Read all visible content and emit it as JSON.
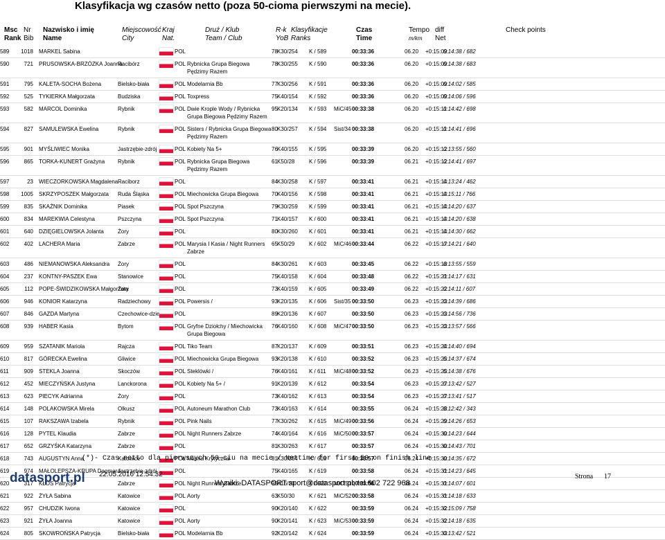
{
  "header": {
    "title": "Klasyfikacja wg czasów netto (poza 50-cioma pierwszymi na mecie).",
    "columns": {
      "msc": [
        "Msc",
        "Rank"
      ],
      "nr": [
        "Nr",
        "Bib"
      ],
      "name": [
        "Nazwisko i imię",
        "Name"
      ],
      "city": [
        "Miejscowość",
        "City"
      ],
      "nat": [
        "Kraj",
        "Nat."
      ],
      "team": [
        "Druż / Klub",
        "Team / Club"
      ],
      "yob": [
        "R-k",
        "YoB"
      ],
      "ranks": [
        "Klasyfikacje",
        "Ranks"
      ],
      "time": [
        "Czas",
        "Time"
      ],
      "tempo": [
        "Tempo",
        "m/km"
      ],
      "diff": "diff",
      "net": "Net",
      "check": "Check points"
    }
  },
  "table": {
    "rows": [
      [
        "589",
        "1018",
        "MARKEL Sabina",
        "",
        "POL",
        "",
        "78",
        "K30/254",
        "K / 589",
        "",
        "00:33:36",
        "06.20",
        "+0:15:09",
        "0:14:38 / 682"
      ],
      [
        "590",
        "721",
        "PRUSOWSKA-BRZÓZKA Joanna",
        "Racibórz",
        "POL",
        "Rybnicka Grupa Biegowa Pędzimy Razem",
        "78",
        "K30/255",
        "K / 590",
        "",
        "00:33:36",
        "06.20",
        "+0:15:09",
        "0:14:38 / 683"
      ],
      [
        "591",
        "795",
        "KALETA-SOCHA Bożena",
        "Bielsko-biała",
        "POL",
        "Modelarnia Bb",
        "77",
        "K30/256",
        "K / 591",
        "",
        "00:33:36",
        "06.20",
        "+0:15:09",
        "0:14:02 / 585"
      ],
      [
        "592",
        "525",
        "TYKIERKA Małgorzata",
        "Budziska",
        "POL",
        "Toxpress",
        "75",
        "K40/154",
        "K / 592",
        "",
        "00:33:36",
        "06.20",
        "+0:15:09",
        "0:14:06 / 596"
      ],
      [
        "593",
        "582",
        "MARCOL Dominika",
        "Rybnik",
        "POL",
        "Dwie Krople Wody / Rybnicka Grupa Biegowa Pędzimy Razem",
        "95",
        "K20/134",
        "K / 593",
        "MiC/45",
        "00:33:38",
        "06.20",
        "+0:15:11",
        "0:14:42 / 698"
      ],
      [
        "594",
        "827",
        "SAMULEWSKA Ewelina",
        "Rybnik",
        "POL",
        "Sisters / Rybnicka Grupa Biegowa Pędzimy Razem",
        "80",
        "K30/257",
        "K / 594",
        "Sist/34",
        "00:33:38",
        "06.20",
        "+0:15:11",
        "0:14:41 / 696"
      ],
      [
        "595",
        "901",
        "MYŚLIWIEC Monika",
        "Jastrzębie-zdrój",
        "POL",
        "Kobiety Na 5+",
        "76",
        "K40/155",
        "K / 595",
        "",
        "00:33:39",
        "06.20",
        "+0:15:12",
        "0:13:55 / 560"
      ],
      [
        "596",
        "865",
        "TORKA-KUNERT Grażyna",
        "Rybnik",
        "POL",
        "Rybnicka Grupa Biegowa Pędzimy Razem",
        "61",
        "K50/28",
        "K / 596",
        "",
        "00:33:39",
        "06.21",
        "+0:15:12",
        "0:14:41 / 697"
      ],
      [
        "597",
        "23",
        "WIECZORKOWSKA Magdalena",
        "Raciborz",
        "POL",
        "",
        "84",
        "K30/258",
        "K / 597",
        "",
        "00:33:41",
        "06.21",
        "+0:15:14",
        "0:13:24 / 462"
      ],
      [
        "598",
        "1005",
        "SKRZYPOSZEK Małgorzata",
        "Ruda Śląska",
        "POL",
        "Miechowicka Grupa Biegowa",
        "70",
        "K40/156",
        "K / 598",
        "",
        "00:33:41",
        "06.21",
        "+0:15:14",
        "0:15:11 / 766"
      ],
      [
        "599",
        "835",
        "SKAŹNIK Dominika",
        "Piasek",
        "POL",
        "Spot Pszczyna",
        "79",
        "K30/259",
        "K / 599",
        "",
        "00:33:41",
        "06.21",
        "+0:15:14",
        "0:14:20 / 637"
      ],
      [
        "600",
        "834",
        "MAREKWIA Celestyna",
        "Pszczyna",
        "POL",
        "Spot Pszczyna",
        "71",
        "K40/157",
        "K / 600",
        "",
        "00:33:41",
        "06.21",
        "+0:15:14",
        "0:14:20 / 638"
      ],
      [
        "601",
        "640",
        "DZIĘGIELOWSKA Jolanta",
        "Żory",
        "POL",
        "",
        "80",
        "K30/260",
        "K / 601",
        "",
        "00:33:41",
        "06.21",
        "+0:15:14",
        "0:14:30 / 662"
      ],
      [
        "602",
        "402",
        "LACHERA Maria",
        "Zabrze",
        "POL",
        "Marysia I Kasia / Night Runners Zabrze",
        "65",
        "K50/29",
        "K / 602",
        "MiC/46",
        "00:33:44",
        "06.22",
        "+0:15:17",
        "0:14:21 / 640"
      ],
      [
        "603",
        "486",
        "NIEMANOWSKA Aleksandra",
        "Żory",
        "POL",
        "",
        "84",
        "K30/261",
        "K / 603",
        "",
        "00:33:45",
        "06.22",
        "+0:15:18",
        "0:13:55 / 559"
      ],
      [
        "604",
        "237",
        "KONTNY-PASZEK Ewa",
        "Stanowice",
        "POL",
        "",
        "75",
        "K40/158",
        "K / 604",
        "",
        "00:33:48",
        "06.22",
        "+0:15:21",
        "0:14:17 / 631"
      ],
      [
        "605",
        "112",
        "POPE-ŚWIDZIKOWSKA Małgorzata",
        "Żory",
        "POL",
        "",
        "73",
        "K40/159",
        "K / 605",
        "",
        "00:33:49",
        "06.22",
        "+0:15:22",
        "0:14:11 / 607"
      ],
      [
        "606",
        "946",
        "KONIOR Katarzyna",
        "Radziechowy",
        "POL",
        "Powersis /",
        "93",
        "K20/135",
        "K / 606",
        "Sist/35",
        "00:33:50",
        "06.23",
        "+0:15:23",
        "0:14:39 / 686"
      ],
      [
        "607",
        "846",
        "GAZDA Martyna",
        "Czechowice-dziedz",
        "POL",
        "",
        "89",
        "K20/136",
        "K / 607",
        "",
        "00:33:50",
        "06.23",
        "+0:15:23",
        "0:14:56 / 736"
      ],
      [
        "608",
        "939",
        "HABER Kasia",
        "Bytom",
        "POL",
        "Gryfne Dziołchy / Miechowicka Grupa Biegowa",
        "76",
        "K40/160",
        "K / 608",
        "MiC/47",
        "00:33:50",
        "06.23",
        "+0:15:23",
        "0:13:57 / 566"
      ],
      [
        "609",
        "959",
        "SZATANIK Mariola",
        "Rajcza",
        "POL",
        "Tiko Team",
        "87",
        "K20/137",
        "K / 609",
        "",
        "00:33:51",
        "06.23",
        "+0:15:24",
        "0:14:40 / 694"
      ],
      [
        "610",
        "817",
        "GÓRECKA Ewelina",
        "Gliwice",
        "POL",
        "Miechowicka Grupa Biegowa",
        "93",
        "K20/138",
        "K / 610",
        "",
        "00:33:52",
        "06.23",
        "+0:15:25",
        "0:14:37 / 674"
      ],
      [
        "611",
        "909",
        "STEKLA Joanna",
        "Skoczów",
        "POL",
        "Steklówki /",
        "76",
        "K40/161",
        "K / 611",
        "MiC/48",
        "00:33:52",
        "06.23",
        "+0:15:25",
        "0:14:38 / 676"
      ],
      [
        "612",
        "452",
        "MIECZYŃSKA Justyna",
        "Lanckorona",
        "POL",
        "Kobiety Na 5+ /",
        "91",
        "K20/139",
        "K / 612",
        "",
        "00:33:54",
        "06.23",
        "+0:15:27",
        "0:13:42 / 527"
      ],
      [
        "613",
        "623",
        "PIECYK Adrianna",
        "Żory",
        "POL",
        "",
        "73",
        "K40/162",
        "K / 613",
        "",
        "00:33:54",
        "06.23",
        "+0:15:27",
        "0:13:41 / 517"
      ],
      [
        "614",
        "148",
        "POLAKOWSKA Mirela",
        "Olkusz",
        "POL",
        "Autoneum Marathon Club",
        "73",
        "K40/163",
        "K / 614",
        "",
        "00:33:55",
        "06.24",
        "+0:15:28",
        "0:12:42 / 343"
      ],
      [
        "615",
        "107",
        "RAKSZAWA Izabela",
        "Rybnik",
        "POL",
        "Pink Nails",
        "77",
        "K30/262",
        "K / 615",
        "MiC/49",
        "00:33:56",
        "06.24",
        "+0:15:29",
        "0:14:26 / 653"
      ],
      [
        "616",
        "128",
        "PYTEL Klaudia",
        "Zabrze",
        "POL",
        "Night Runners Zabrze",
        "74",
        "K40/164",
        "K / 616",
        "MiC/50",
        "00:33:57",
        "06.24",
        "+0:15:30",
        "0:14:23 / 644"
      ],
      [
        "617",
        "652",
        "GRZYŚKA Katarzyna",
        "Zabrze",
        "POL",
        "",
        "81",
        "K30/263",
        "K / 617",
        "",
        "00:33:57",
        "06.24",
        "+0:15:30",
        "0:14:43 / 701"
      ],
      [
        "618",
        "743",
        "AUGUSTYN Anna",
        "Katowice",
        "POL",
        "Masna Krytyczna",
        "81",
        "K30/264",
        "K / 618",
        "",
        "00:33:57",
        "06.24",
        "+0:15:30",
        "0:14:35 / 672"
      ],
      [
        "619",
        "974",
        "MAŁOLEPSZA-KRUPA Dagmara",
        "Jastrzębie-zdrój",
        "POL",
        "",
        "75",
        "K40/165",
        "K / 619",
        "",
        "00:33:58",
        "06.24",
        "+0:15:31",
        "0:14:23 / 645"
      ],
      [
        "620",
        "317",
        "KŁOS Patrycja",
        "Zabrze",
        "POL",
        "Night Runners Zabrze",
        "95",
        "K16/20",
        "K / 620",
        "MiC/51",
        "00:33:58",
        "06.24",
        "+0:15:31",
        "0:14:07 / 601"
      ],
      [
        "621",
        "922",
        "ŻYŁA Sabina",
        "Katowice",
        "POL",
        "Aorty",
        "63",
        "K50/30",
        "K / 621",
        "MiC/52",
        "00:33:58",
        "06.24",
        "+0:15:31",
        "0:14:18 / 633"
      ],
      [
        "622",
        "957",
        "CHUDZIK Iwona",
        "Katowice",
        "POL",
        "",
        "90",
        "K20/140",
        "K / 622",
        "",
        "00:33:59",
        "06.24",
        "+0:15:32",
        "0:15:09 / 758"
      ],
      [
        "623",
        "921",
        "ŻYŁA Joanna",
        "Katowice",
        "POL",
        "Aorty",
        "90",
        "K20/141",
        "K / 623",
        "MiC/53",
        "00:33:59",
        "06.24",
        "+0:15:32",
        "0:14:18 / 635"
      ],
      [
        "624",
        "805",
        "SKOWROŃSKA Patrycja",
        "Bielsko-biała",
        "POL",
        "Modelarnia Bb",
        "92",
        "K20/142",
        "K / 624",
        "",
        "00:33:59",
        "06.24",
        "+0:15:33",
        "0:13:42 / 521"
      ]
    ]
  },
  "footer": {
    "note": "(*)- Czas netto dla pierwszych 50-ciu na mecie / Nettime for first 50 on finish line",
    "logo": "datasport.pl",
    "date": "22.05.2016 12:54:32",
    "contact": "Wyniki: DATASPORT sport@datasport.pl, tel.602 722 968",
    "page_label": "Strona",
    "page": "17"
  }
}
